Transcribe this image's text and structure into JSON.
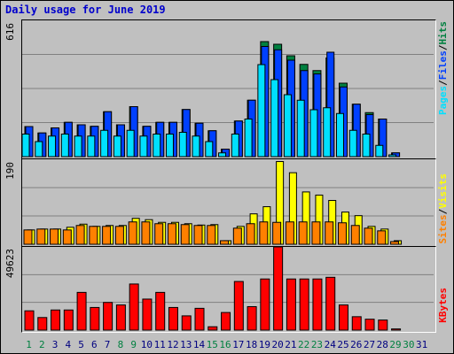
{
  "title": "Daily usage for June 2019",
  "chart_data": [
    {
      "type": "bar",
      "name": "pages-files-hits",
      "categories": [
        "1",
        "2",
        "3",
        "4",
        "5",
        "6",
        "7",
        "8",
        "9",
        "10",
        "11",
        "12",
        "13",
        "14",
        "15",
        "16",
        "17",
        "18",
        "19",
        "20",
        "21",
        "22",
        "23",
        "24",
        "25",
        "26",
        "27",
        "28",
        "29",
        "30",
        "31"
      ],
      "ymax_label": "616",
      "ylim": [
        0,
        616
      ],
      "series": [
        {
          "name": "Hits",
          "color": "#008040",
          "values": [
            136,
            107,
            130,
            155,
            144,
            137,
            203,
            144,
            226,
            137,
            155,
            155,
            213,
            151,
            117,
            34,
            161,
            255,
            520,
            508,
            456,
            417,
            389,
            446,
            332,
            237,
            199,
            170,
            17,
            0,
            0
          ]
        },
        {
          "name": "Files",
          "color": "#0040ff",
          "values": [
            136,
            107,
            130,
            155,
            144,
            137,
            203,
            144,
            226,
            137,
            155,
            155,
            213,
            151,
            117,
            34,
            161,
            255,
            498,
            483,
            436,
            389,
            374,
            472,
            315,
            237,
            190,
            170,
            17,
            0,
            0
          ]
        },
        {
          "name": "Pages",
          "color": "#00e0ff",
          "values": [
            102,
            68,
            93,
            102,
            93,
            93,
            119,
            93,
            119,
            93,
            102,
            102,
            110,
            93,
            68,
            17,
            102,
            170,
            416,
            348,
            280,
            255,
            212,
            221,
            195,
            119,
            102,
            51,
            8,
            0,
            0
          ]
        }
      ]
    },
    {
      "type": "bar",
      "name": "sites-visits",
      "categories": [
        "1",
        "2",
        "3",
        "4",
        "5",
        "6",
        "7",
        "8",
        "9",
        "10",
        "11",
        "12",
        "13",
        "14",
        "15",
        "16",
        "17",
        "18",
        "19",
        "20",
        "21",
        "22",
        "23",
        "24",
        "25",
        "26",
        "27",
        "28",
        "29",
        "30",
        "31"
      ],
      "ymax_label": "190",
      "ylim": [
        0,
        190
      ],
      "series": [
        {
          "name": "Visits",
          "color": "#ffff00",
          "values": [
            32,
            34,
            34,
            38,
            45,
            40,
            42,
            42,
            58,
            55,
            49,
            49,
            46,
            43,
            44,
            8,
            40,
            68,
            84,
            185,
            160,
            117,
            110,
            98,
            72,
            64,
            40,
            34,
            8,
            0,
            0
          ]
        },
        {
          "name": "Sites",
          "color": "#ff8000",
          "values": [
            32,
            34,
            34,
            32,
            42,
            40,
            40,
            40,
            50,
            50,
            46,
            46,
            44,
            42,
            42,
            8,
            36,
            46,
            50,
            49,
            50,
            50,
            50,
            50,
            48,
            42,
            36,
            30,
            6,
            0,
            0
          ]
        }
      ]
    },
    {
      "type": "bar",
      "name": "kbytes",
      "categories": [
        "1",
        "2",
        "3",
        "4",
        "5",
        "6",
        "7",
        "8",
        "9",
        "10",
        "11",
        "12",
        "13",
        "14",
        "15",
        "16",
        "17",
        "18",
        "19",
        "20",
        "21",
        "22",
        "23",
        "24",
        "25",
        "26",
        "27",
        "28",
        "29",
        "30",
        "31"
      ],
      "ymax_label": "49623",
      "ylim": [
        0,
        49623
      ],
      "series": [
        {
          "name": "KBytes",
          "color": "#ff0000",
          "values": [
            11500,
            7500,
            12000,
            12000,
            22500,
            13500,
            16500,
            15000,
            27500,
            18500,
            22500,
            13500,
            8500,
            13000,
            2000,
            10500,
            29000,
            14000,
            30500,
            49623,
            30500,
            30500,
            30500,
            31500,
            15000,
            8000,
            6500,
            6000,
            700,
            0,
            0
          ]
        }
      ]
    }
  ],
  "right_labels": {
    "top": [
      "Pages",
      "/",
      "Files",
      "/",
      "Hits"
    ],
    "top_colors": [
      "#00e0ff",
      "#000000",
      "#0040ff",
      "#000000",
      "#008040"
    ],
    "mid": [
      "Sites",
      "/",
      "Visits"
    ],
    "mid_colors": [
      "#ff8000",
      "#000000",
      "#ffff00"
    ],
    "bottom": "KBytes",
    "bottom_color": "#ff0000"
  },
  "weekend_days": [
    "1",
    "2",
    "8",
    "9",
    "15",
    "16",
    "22",
    "23",
    "29",
    "30"
  ],
  "weekend_color": "#008040",
  "weekday_color": "#000080"
}
